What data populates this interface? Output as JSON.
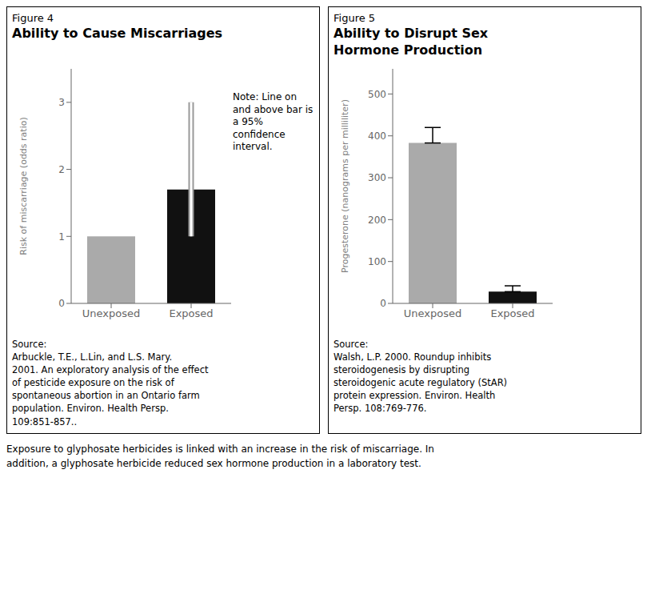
{
  "caption": "Exposure to glyphosate herbicides is linked with an increase in the risk of miscarriage. In\naddition, a glyphosate herbicide reduced sex hormone production in a laboratory test.",
  "chart_data": [
    {
      "type": "bar",
      "subtitle": "Figure 4",
      "title": "Ability to Cause Miscarriages",
      "categories": [
        "Unexposed",
        "Exposed"
      ],
      "values": [
        1.0,
        1.7
      ],
      "colors": [
        "#aaaaaa",
        "#111111"
      ],
      "ylabel": "Risk of miscarriage (odds ratio)",
      "ylim": [
        0,
        3.5
      ],
      "yticks": [
        0,
        1,
        2,
        3
      ],
      "grid": false,
      "ci_low": [
        null,
        1.0
      ],
      "ci_high": [
        null,
        3.0
      ],
      "annotation": "Note: Line on\nand above bar is\na 95%\nconfidence\ninterval.",
      "source": "Source:\nArbuckle, T.E., L.Lin, and L.S. Mary.\n2001. An exploratory analysis of the effect\nof pesticide exposure on the risk of\nspontaneous abortion in an Ontario farm\npopulation. Environ. Health Persp.\n109:851-857.."
    },
    {
      "type": "bar",
      "subtitle": "Figure 5",
      "title": "Ability to Disrupt Sex\nHormone Production",
      "categories": [
        "Unexposed",
        "Exposed"
      ],
      "values": [
        383,
        28
      ],
      "colors": [
        "#aaaaaa",
        "#111111"
      ],
      "ylabel": "Progesterone (nanograms per milliliter)",
      "ylim": [
        0,
        560
      ],
      "yticks": [
        0,
        100,
        200,
        300,
        400,
        500
      ],
      "grid": false,
      "error_plus": [
        37,
        14
      ],
      "source": "Source:\nWalsh, L.P. 2000. Roundup inhibits\nsteroidogenesis by disrupting\nsteroidogenic acute regulatory (StAR)\nprotein expression. Environ. Health\nPersp. 108:769-776."
    }
  ]
}
